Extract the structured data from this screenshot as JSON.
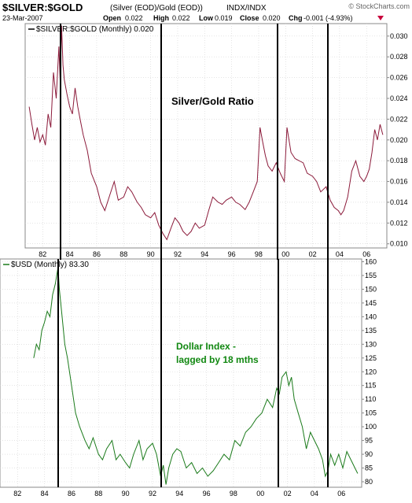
{
  "header": {
    "symbol": "$SILVER:$GOLD",
    "description": "(Silver (EOD)/Gold (EOD))",
    "exchange": "INDX/INDX",
    "watermark": "© StockCharts.com",
    "date": "23-Mar-2007",
    "quote": {
      "open_label": "Open",
      "open": "0.022",
      "high_label": "High",
      "high": "0.022",
      "low_label": "Low",
      "low": "0.019",
      "close_label": "Close",
      "close": "0.020",
      "chg_label": "Chg",
      "chg": "-0.001 (-4.93%)"
    },
    "chg_arrow_icon": "down-triangle-icon",
    "chg_color": "#c8003c"
  },
  "chart_data": [
    {
      "type": "line",
      "legend": "$SILVER:$GOLD (Monthly) 0.020",
      "annotation": "Silver/Gold Ratio",
      "series_color": "#8b1a3a",
      "x_tick_labels": [
        "82",
        "84",
        "86",
        "88",
        "90",
        "92",
        "94",
        "96",
        "98",
        "00",
        "02",
        "04",
        "06"
      ],
      "x_tick_years": [
        1982,
        1984,
        1986,
        1988,
        1990,
        1992,
        1994,
        1996,
        1998,
        2000,
        2002,
        2004,
        2006
      ],
      "xlim": [
        1980.7,
        2007.5
      ],
      "ylim": [
        0.0096,
        0.0312
      ],
      "y_ticks": [
        0.01,
        0.012,
        0.014,
        0.016,
        0.018,
        0.02,
        0.022,
        0.024,
        0.026,
        0.028,
        0.03
      ],
      "y_tick_labels": [
        "0.010",
        "0.012",
        "0.014",
        "0.016",
        "0.018",
        "0.020",
        "0.022",
        "0.024",
        "0.026",
        "0.028",
        "0.030"
      ],
      "grid": true,
      "legend_position": "top-left",
      "x": [
        1981.0,
        1981.2,
        1981.4,
        1981.6,
        1981.8,
        1982.0,
        1982.2,
        1982.4,
        1982.6,
        1982.8,
        1983.0,
        1983.2,
        1983.3,
        1983.4,
        1983.5,
        1983.6,
        1983.8,
        1984.0,
        1984.2,
        1984.4,
        1984.6,
        1984.8,
        1985.0,
        1985.3,
        1985.6,
        1986.0,
        1986.3,
        1986.6,
        1987.0,
        1987.3,
        1987.6,
        1988.0,
        1988.3,
        1988.6,
        1989.0,
        1989.3,
        1989.6,
        1990.0,
        1990.3,
        1990.6,
        1990.9,
        1991.2,
        1991.5,
        1991.8,
        1992.1,
        1992.4,
        1992.7,
        1993.0,
        1993.3,
        1993.6,
        1994.0,
        1994.3,
        1994.6,
        1995.0,
        1995.3,
        1995.6,
        1996.0,
        1996.3,
        1996.6,
        1997.0,
        1997.3,
        1997.6,
        1997.9,
        1998.1,
        1998.3,
        1998.5,
        1998.7,
        1999.0,
        1999.3,
        1999.6,
        1999.9,
        2000.1,
        2000.4,
        2000.7,
        2001.0,
        2001.3,
        2001.6,
        2002.0,
        2002.3,
        2002.6,
        2003.0,
        2003.3,
        2003.6,
        2003.9,
        2004.1,
        2004.3,
        2004.6,
        2004.9,
        2005.2,
        2005.5,
        2005.8,
        2006.0,
        2006.2,
        2006.4,
        2006.6,
        2006.8,
        2007.0,
        2007.2
      ],
      "y": [
        0.0232,
        0.0215,
        0.02,
        0.0212,
        0.0198,
        0.0205,
        0.0195,
        0.0225,
        0.0212,
        0.0265,
        0.024,
        0.029,
        0.0255,
        0.031,
        0.0272,
        0.0258,
        0.0244,
        0.0232,
        0.0225,
        0.025,
        0.0232,
        0.0218,
        0.0205,
        0.019,
        0.0168,
        0.0155,
        0.014,
        0.0132,
        0.0148,
        0.016,
        0.0142,
        0.0145,
        0.0155,
        0.015,
        0.014,
        0.0135,
        0.0128,
        0.0125,
        0.013,
        0.0118,
        0.011,
        0.0104,
        0.0115,
        0.0125,
        0.012,
        0.0112,
        0.0108,
        0.0112,
        0.012,
        0.0115,
        0.0118,
        0.0132,
        0.0145,
        0.014,
        0.0138,
        0.0142,
        0.0145,
        0.014,
        0.0138,
        0.0133,
        0.014,
        0.015,
        0.016,
        0.0212,
        0.0198,
        0.0185,
        0.0175,
        0.017,
        0.0178,
        0.0168,
        0.016,
        0.0212,
        0.0188,
        0.0182,
        0.018,
        0.0178,
        0.0168,
        0.0165,
        0.016,
        0.015,
        0.0155,
        0.0142,
        0.0135,
        0.0132,
        0.0128,
        0.0132,
        0.0145,
        0.017,
        0.018,
        0.0165,
        0.016,
        0.0165,
        0.0172,
        0.0188,
        0.021,
        0.02,
        0.0215,
        0.0205
      ]
    },
    {
      "type": "line",
      "legend": "$USD (Monthly) 83.30",
      "annotation": [
        "Dollar Index -",
        "lagged by 18 mths"
      ],
      "annotation_color": "#118811",
      "series_color": "#1a7a1a",
      "x_tick_labels": [
        "82",
        "84",
        "86",
        "88",
        "90",
        "92",
        "94",
        "96",
        "98",
        "00",
        "02",
        "04",
        "06"
      ],
      "x_tick_years": [
        1982,
        1984,
        1986,
        1988,
        1990,
        1992,
        1994,
        1996,
        1998,
        2000,
        2002,
        2004,
        2006
      ],
      "xlim": [
        1980.7,
        2007.5
      ],
      "ylim": [
        78,
        161
      ],
      "y_ticks": [
        80,
        85,
        90,
        95,
        100,
        105,
        110,
        115,
        120,
        125,
        130,
        135,
        140,
        145,
        150,
        155,
        160
      ],
      "y_tick_labels": [
        "80",
        "85",
        "90",
        "95",
        "100",
        "105",
        "110",
        "115",
        "120",
        "125",
        "130",
        "135",
        "140",
        "145",
        "150",
        "155",
        "160"
      ],
      "grid": true,
      "legend_position": "top-left",
      "x": [
        1983.2,
        1983.4,
        1983.6,
        1983.8,
        1984.0,
        1984.2,
        1984.4,
        1984.6,
        1984.8,
        1985.0,
        1985.1,
        1985.3,
        1985.5,
        1985.7,
        1986.0,
        1986.3,
        1986.6,
        1987.0,
        1987.3,
        1987.6,
        1988.0,
        1988.3,
        1988.6,
        1989.0,
        1989.3,
        1989.6,
        1990.0,
        1990.3,
        1990.6,
        1991.0,
        1991.3,
        1991.6,
        1992.0,
        1992.3,
        1992.6,
        1992.8,
        1993.0,
        1993.2,
        1993.5,
        1993.8,
        1994.1,
        1994.5,
        1994.9,
        1995.3,
        1995.7,
        1996.1,
        1996.5,
        1996.9,
        1997.3,
        1997.7,
        1998.1,
        1998.5,
        1998.9,
        1999.3,
        1999.7,
        2000.1,
        2000.5,
        2000.9,
        2001.2,
        2001.4,
        2001.6,
        2001.9,
        2002.1,
        2002.3,
        2002.5,
        2002.8,
        2003.1,
        2003.4,
        2003.7,
        2004.0,
        2004.3,
        2004.6,
        2004.8,
        2005.0,
        2005.2,
        2005.5,
        2005.8,
        2006.1,
        2006.4,
        2006.7,
        2007.0,
        2007.2
      ],
      "y": [
        125,
        130,
        128,
        135,
        138,
        142,
        140,
        148,
        152,
        158,
        150,
        140,
        130,
        125,
        115,
        105,
        100,
        95,
        92,
        96,
        90,
        88,
        92,
        95,
        88,
        90,
        87,
        85,
        90,
        95,
        88,
        92,
        94,
        90,
        82,
        86,
        79,
        85,
        90,
        92,
        91,
        85,
        87,
        83,
        85,
        82,
        84,
        87,
        90,
        88,
        95,
        93,
        98,
        100,
        103,
        105,
        110,
        107,
        114,
        112,
        118,
        120,
        115,
        118,
        110,
        105,
        100,
        92,
        98,
        95,
        92,
        88,
        82,
        84,
        90,
        86,
        90,
        85,
        91,
        88,
        85,
        83
      ]
    }
  ]
}
